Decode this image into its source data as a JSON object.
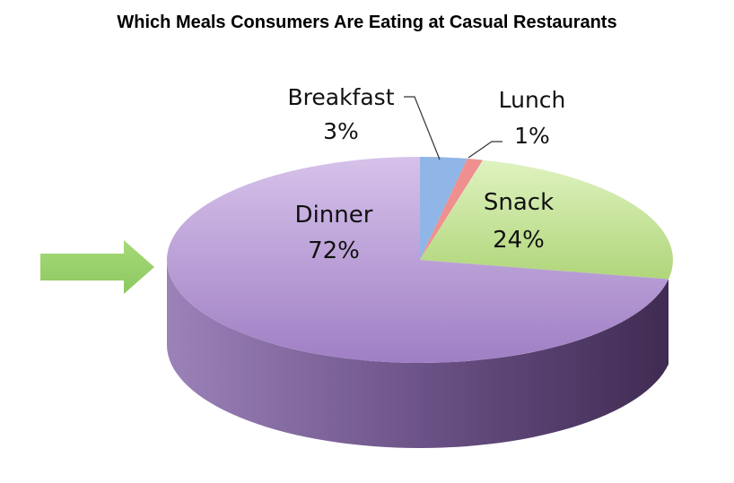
{
  "chart_data": {
    "type": "pie",
    "title": "Which Meals Consumers Are Eating at Casual Restaurants",
    "slices": [
      {
        "label": "Breakfast",
        "value": 3,
        "value_label": "3%",
        "color": "#8fb6e6"
      },
      {
        "label": "Lunch",
        "value": 1,
        "value_label": "1%",
        "color": "#f08f8f"
      },
      {
        "label": "Snack",
        "value": 24,
        "value_label": "24%",
        "color": "#c4e39a"
      },
      {
        "label": "Dinner",
        "value": 72,
        "value_label": "72%",
        "color": "#b79ad4"
      }
    ],
    "style": "3d",
    "annotation": "green arrow pointing at Dinner"
  }
}
